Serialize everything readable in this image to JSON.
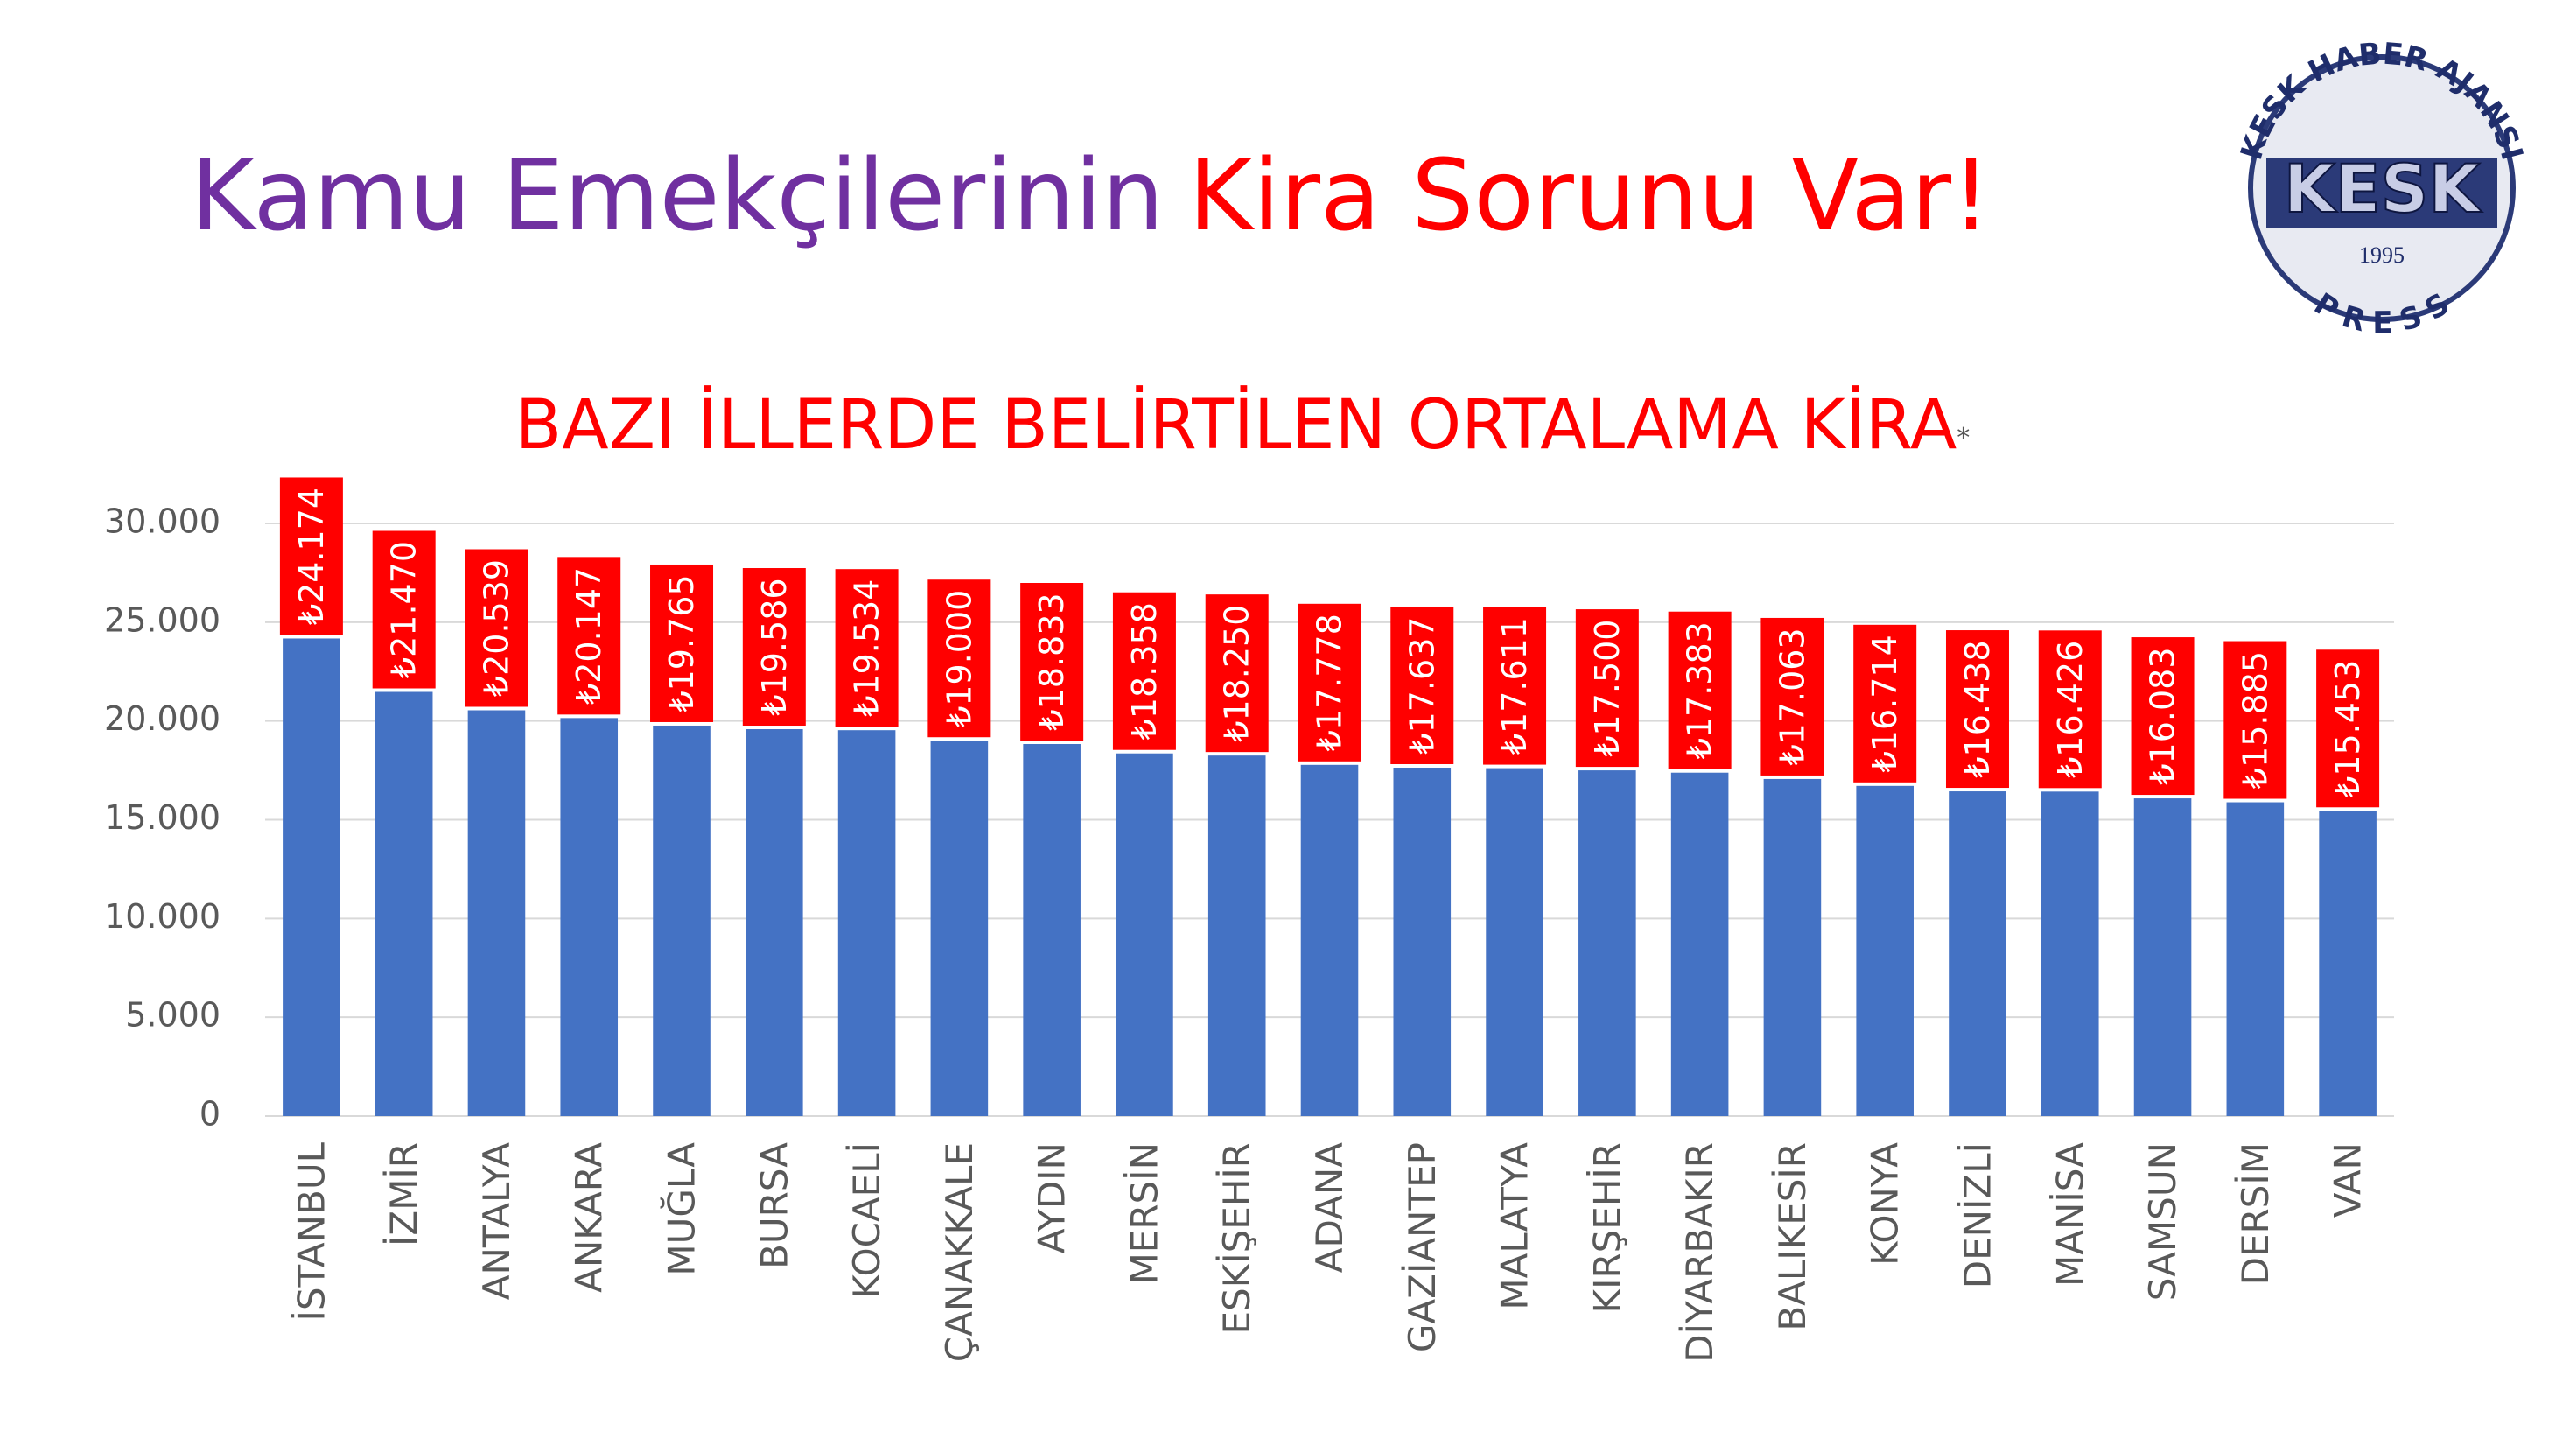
{
  "header": {
    "title_part1": "Kamu Emekçilerinin",
    "title_part2": "Kira Sorunu Var!"
  },
  "logo": {
    "arc_text": "KESK HABER AJANSI",
    "name": "KESK",
    "year": "1995",
    "press": "P R E S S"
  },
  "chart_data": {
    "type": "bar",
    "title": "BAZI İLLERDE BELİRTİLEN ORTALAMA KİRA",
    "title_note": "*",
    "categories": [
      "İSTANBUL",
      "İZMİR",
      "ANTALYA",
      "ANKARA",
      "MUĞLA",
      "BURSA",
      "KOCAELİ",
      "ÇANAKKALE",
      "AYDIN",
      "MERSİN",
      "ESKİŞEHİR",
      "ADANA",
      "GAZİANTEP",
      "MALATYA",
      "KIRŞEHİR",
      "DİYARBAKIR",
      "BALIKESİR",
      "KONYA",
      "DENİZLİ",
      "MANİSA",
      "SAMSUN",
      "DERSİM",
      "VAN"
    ],
    "values": [
      24174,
      21470,
      20539,
      20147,
      19765,
      19586,
      19534,
      19000,
      18833,
      18358,
      18250,
      17778,
      17637,
      17611,
      17500,
      17383,
      17063,
      16714,
      16438,
      16426,
      16083,
      15885,
      15453
    ],
    "value_labels": [
      "₺24.174",
      "₺21.470",
      "₺20.539",
      "₺20.147",
      "₺19.765",
      "₺19.586",
      "₺19.534",
      "₺19.000",
      "₺18.833",
      "₺18.358",
      "₺18.250",
      "₺17.778",
      "₺17.637",
      "₺17.611",
      "₺17.500",
      "₺17.383",
      "₺17.063",
      "₺16.714",
      "₺16.438",
      "₺16.426",
      "₺16.083",
      "₺15.885",
      "₺15.453"
    ],
    "color": "#4472c4",
    "label_color": "#ff0000",
    "ylim": [
      0,
      30000
    ],
    "yticks": [
      0,
      {
        "value": 5000,
        "label": "5.000"
      },
      {
        "value": 10000,
        "label": "10.000"
      },
      {
        "value": 15000,
        "label": "15.000"
      },
      {
        "value": 20000,
        "label": "20.000"
      },
      {
        "value": 25000,
        "label": "25.000"
      },
      {
        "value": 30000,
        "label": "30.000"
      }
    ],
    "grid": true
  }
}
